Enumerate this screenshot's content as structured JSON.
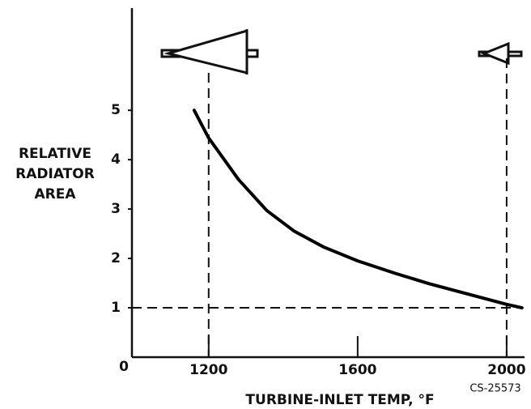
{
  "chart_data": {
    "type": "line",
    "ylabel": [
      "RELATIVE",
      "RADIATOR",
      "AREA"
    ],
    "xlabel": "TURBINE-INLET TEMP, °F",
    "annotation": "CS-25573",
    "x": [
      1161,
      1200,
      1280,
      1356,
      1430,
      1509,
      1600,
      1700,
      1791,
      1900,
      2000,
      2041
    ],
    "series": [
      {
        "color": "#000000",
        "values": [
          5.0,
          4.44,
          3.6,
          2.97,
          2.55,
          2.23,
          1.95,
          1.7,
          1.49,
          1.27,
          1.07,
          1.0
        ]
      }
    ],
    "xlim": [
      994,
      2048
    ],
    "ylim": [
      0,
      7.07
    ],
    "xticks": [
      1200,
      1600,
      2000
    ],
    "yticks": [
      0,
      1,
      2,
      3,
      4,
      5
    ],
    "reference_lines": {
      "x": [
        1200,
        2000
      ],
      "y": [
        1
      ]
    }
  }
}
